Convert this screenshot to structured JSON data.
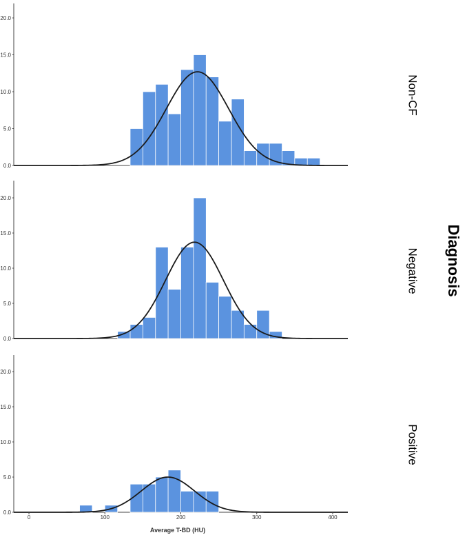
{
  "chart_data": {
    "type": "bar",
    "subtype": "faceted-histogram-with-normal-curve",
    "xlabel": "Average T-BD (HU)",
    "facet_title": "Diagnosis",
    "xlim": [
      -20,
      420
    ],
    "x_ticks": [
      0,
      100,
      200,
      300,
      400
    ],
    "ylim": [
      0,
      22
    ],
    "y_ticks": [
      "0.0",
      "5.0",
      "10.0",
      "15.0",
      "20.0"
    ],
    "bin_width": 16.7,
    "colors": {
      "bar": "#5b93df",
      "bar_edge": "#ffffff",
      "curve": "#1a1a1a",
      "axis": "#444444"
    },
    "panels": [
      {
        "label": "Non-CF",
        "bins": [
          {
            "start": 133.3,
            "count": 5
          },
          {
            "start": 150.0,
            "count": 10
          },
          {
            "start": 166.7,
            "count": 11
          },
          {
            "start": 183.3,
            "count": 7
          },
          {
            "start": 200.0,
            "count": 13
          },
          {
            "start": 216.7,
            "count": 15
          },
          {
            "start": 233.3,
            "count": 12
          },
          {
            "start": 250.0,
            "count": 6
          },
          {
            "start": 266.7,
            "count": 9
          },
          {
            "start": 283.3,
            "count": 2
          },
          {
            "start": 300.0,
            "count": 3
          },
          {
            "start": 316.7,
            "count": 3
          },
          {
            "start": 333.3,
            "count": 2
          },
          {
            "start": 350.0,
            "count": 1
          },
          {
            "start": 366.7,
            "count": 1
          }
        ],
        "curve": {
          "mean": 222,
          "sd": 41,
          "peak": 12.7
        }
      },
      {
        "label": "Negative",
        "bins": [
          {
            "start": 116.7,
            "count": 1
          },
          {
            "start": 133.3,
            "count": 2
          },
          {
            "start": 150.0,
            "count": 3
          },
          {
            "start": 166.7,
            "count": 13
          },
          {
            "start": 183.3,
            "count": 7
          },
          {
            "start": 200.0,
            "count": 13
          },
          {
            "start": 216.7,
            "count": 20
          },
          {
            "start": 233.3,
            "count": 8
          },
          {
            "start": 250.0,
            "count": 6
          },
          {
            "start": 266.7,
            "count": 4
          },
          {
            "start": 283.3,
            "count": 2
          },
          {
            "start": 300.0,
            "count": 4
          },
          {
            "start": 316.7,
            "count": 1
          }
        ],
        "curve": {
          "mean": 218,
          "sd": 38,
          "peak": 13.7
        }
      },
      {
        "label": "Positive",
        "bins": [
          {
            "start": 66.7,
            "count": 1
          },
          {
            "start": 100.0,
            "count": 1
          },
          {
            "start": 133.3,
            "count": 4
          },
          {
            "start": 150.0,
            "count": 4
          },
          {
            "start": 166.7,
            "count": 5
          },
          {
            "start": 183.3,
            "count": 6
          },
          {
            "start": 200.0,
            "count": 3
          },
          {
            "start": 216.7,
            "count": 3
          },
          {
            "start": 233.3,
            "count": 3
          }
        ],
        "curve": {
          "mean": 183,
          "sd": 35,
          "peak": 5.0
        }
      }
    ]
  }
}
